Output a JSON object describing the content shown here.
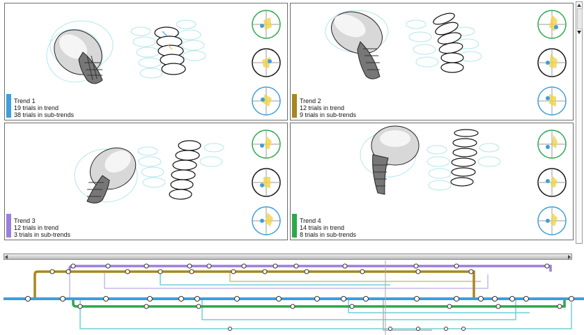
{
  "trends": [
    {
      "label": "Trend 1",
      "trials": "19 trials in trend",
      "subtrials": "38 trials in sub-trends",
      "color": "#3d9fdc"
    },
    {
      "label": "Trend 2",
      "trials": "12 trials in trend",
      "subtrials": "9 trials in sub-trends",
      "color": "#a8871f"
    },
    {
      "label": "Trend 3",
      "trials": "12 trials in trend",
      "subtrials": "3 trials in sub-trends",
      "color": "#9b7fdc"
    },
    {
      "label": "Trend 4",
      "trials": "14 trials in trend",
      "subtrials": "8 trials in sub-trends",
      "color": "#2da84a"
    }
  ],
  "icons": {
    "skull": "skull-icon",
    "vertebrae": "vertebrae-stack-icon",
    "polar": "polar-plot-icon"
  },
  "colors": {
    "trend1": "#3d9fdc",
    "trend2": "#a8871f",
    "trend3": "#9b7fdc",
    "trend4": "#2da84a",
    "cyan": "#6ed1d6",
    "lavender": "#c6b8ec",
    "olive": "#c9c27a"
  }
}
